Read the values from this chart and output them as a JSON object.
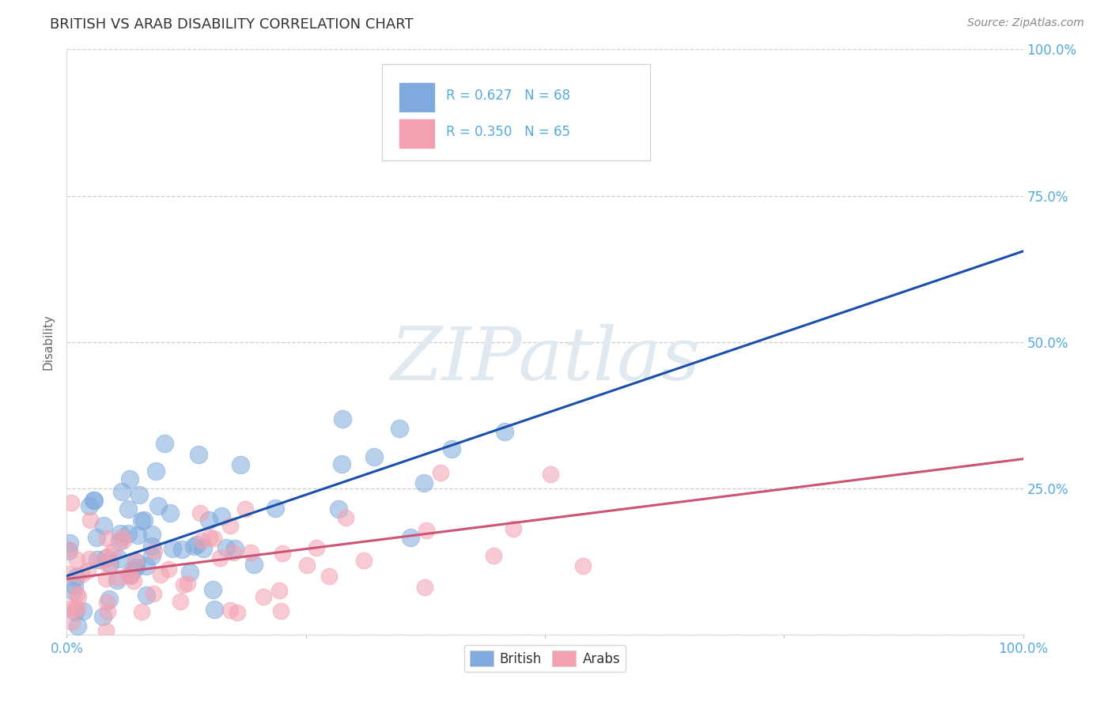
{
  "title": "BRITISH VS ARAB DISABILITY CORRELATION CHART",
  "source": "Source: ZipAtlas.com",
  "ylabel": "Disability",
  "british_R": 0.627,
  "british_N": 68,
  "arab_R": 0.35,
  "arab_N": 65,
  "british_color": "#7faadd",
  "arab_color": "#f4a0b0",
  "british_line_color": "#1a4faa",
  "arab_line_color": "#cc5575",
  "xlim": [
    0,
    1
  ],
  "ylim": [
    0,
    1
  ],
  "grid_color": "#c8c8c8",
  "background_color": "#ffffff",
  "title_color": "#333333",
  "axis_label_color": "#666666",
  "tick_label_color": "#55aadd",
  "legend_text_color": "#55aadd",
  "watermark_color": "#e0e8f0",
  "brit_line_start_y": 0.1,
  "brit_line_end_y": 0.655,
  "arab_line_start_y": 0.095,
  "arab_line_end_y": 0.3
}
